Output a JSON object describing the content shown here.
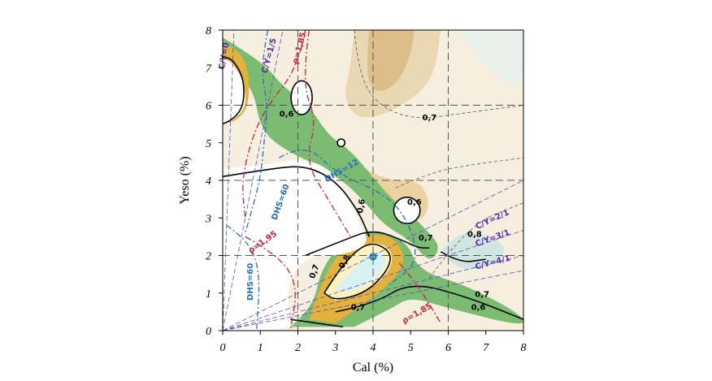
{
  "chart_data": {
    "type": "contour",
    "xlabel": "Cal (%)",
    "ylabel": "Yeso (%)",
    "xlim": [
      0,
      8
    ],
    "ylim": [
      0,
      8
    ],
    "xticks": [
      0,
      1,
      2,
      3,
      4,
      5,
      6,
      7,
      8
    ],
    "yticks": [
      0,
      1,
      2,
      3,
      4,
      5,
      6,
      7,
      8
    ],
    "grid": true,
    "annotations": [
      "C/Y=0",
      "C/Y=1/5",
      "ρ=1,85",
      "0,6",
      "0,7",
      "DHS=12",
      "DHS=60",
      "0,6",
      "0,6",
      "0,7",
      "0,8",
      "0,8",
      "ρ=1,95",
      "0,7",
      "DHS=60",
      "0,7",
      "C/Y=2/1",
      "C/Y=3/1",
      "C/Y=4/1",
      "0,7",
      "0,6",
      "ρ=1,85"
    ]
  }
}
